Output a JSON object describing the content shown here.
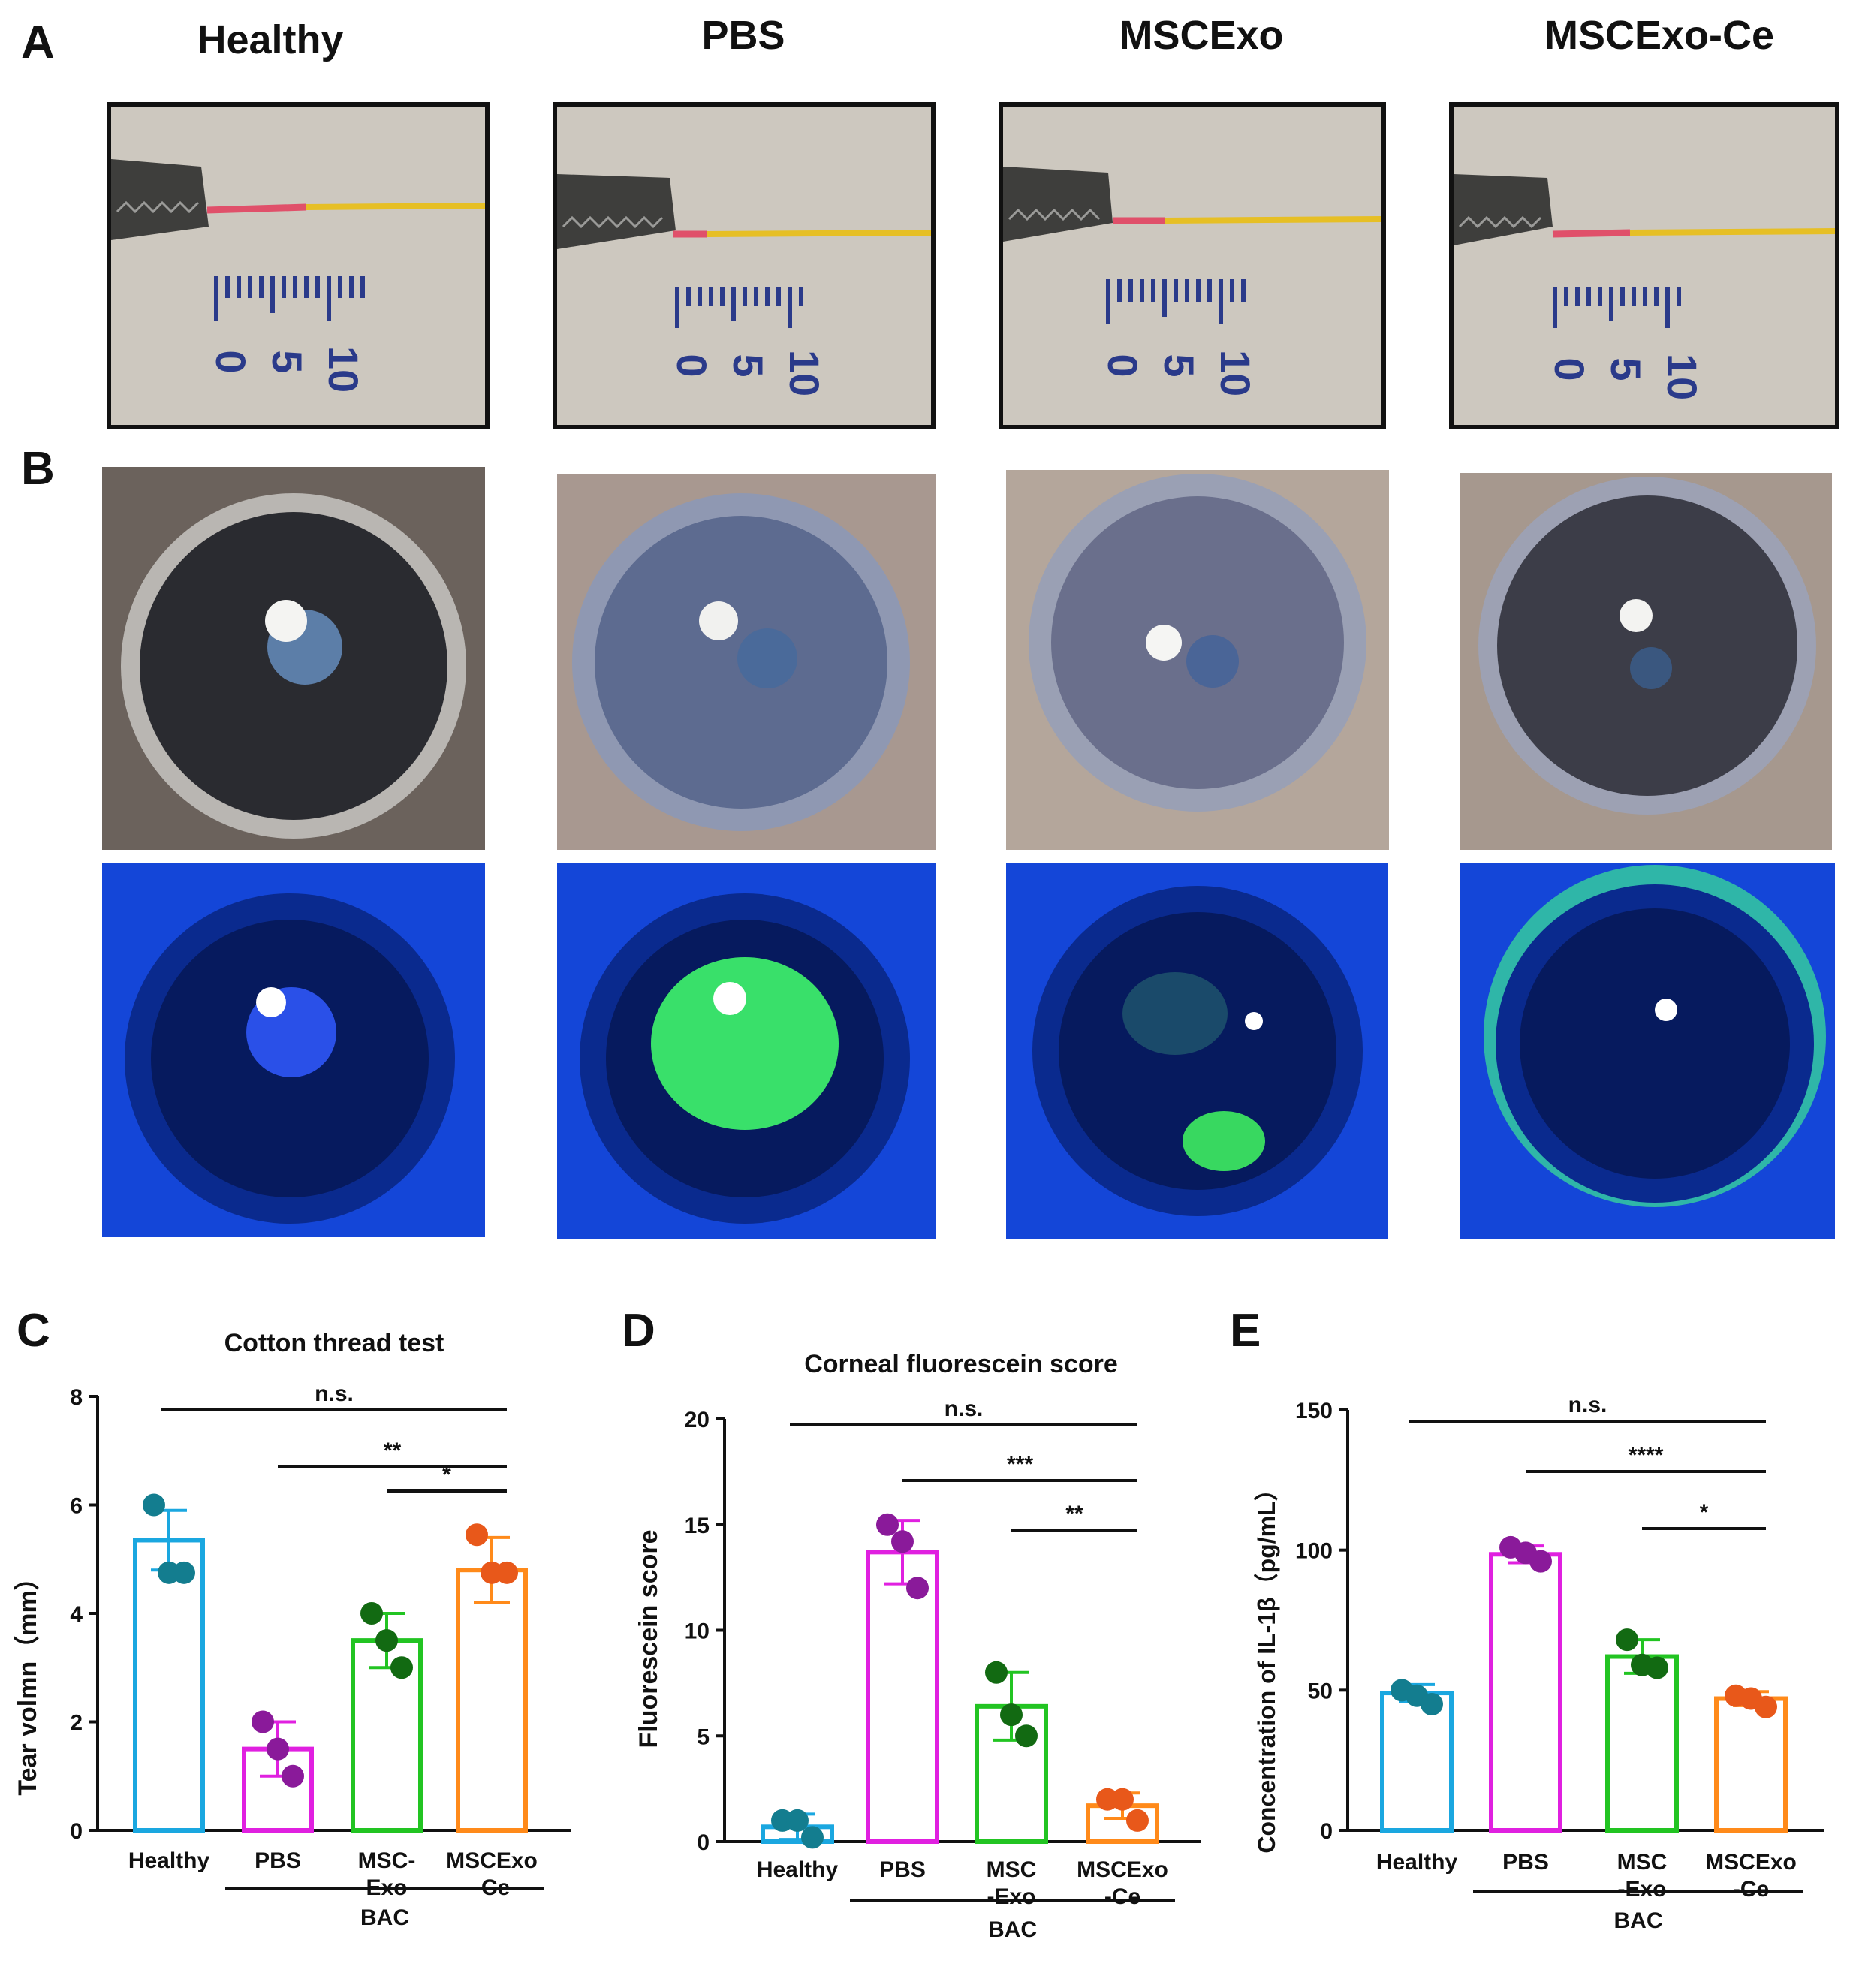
{
  "panel_labels": [
    "A",
    "B",
    "C",
    "D",
    "E"
  ],
  "groups": [
    "Healthy",
    "PBS",
    "MSCExo",
    "MSCExo-Ce"
  ],
  "ruler_ticks": [
    "0",
    "5",
    "10"
  ],
  "colors": {
    "healthy": "#1aa7e0",
    "pbs": "#e020e0",
    "mscexo": "#22c422",
    "mscexoce": "#ff8a1a",
    "dot_healthy": "#137d8f",
    "dot_pbs": "#8a1a9a",
    "dot_mscexo": "#126a12",
    "dot_mscexoce": "#e8581a"
  },
  "chart_data": [
    {
      "type": "bar",
      "title": "Cotton thread test",
      "ylabel": "Tear volmn（mm）",
      "ylim": [
        0,
        8
      ],
      "yticks": [
        "0",
        "2",
        "4",
        "6",
        "8"
      ],
      "categories": [
        "Healthy",
        "PBS",
        "MSC-|Exo",
        "MSCExo|-Ce"
      ],
      "group_label": "BAC",
      "values": [
        5.35,
        1.5,
        3.5,
        4.8
      ],
      "errors": [
        0.55,
        0.5,
        0.5,
        0.6
      ],
      "points": [
        [
          6.0,
          4.75,
          4.75
        ],
        [
          2.0,
          1.5,
          1.0
        ],
        [
          4.0,
          3.5,
          3.0
        ],
        [
          5.45,
          4.75,
          4.75
        ]
      ],
      "significance": [
        {
          "from": 0,
          "to": 3,
          "label": "n.s."
        },
        {
          "from": 1,
          "to": 3,
          "label": "**"
        },
        {
          "from": 2,
          "to": 3,
          "label": "*"
        }
      ]
    },
    {
      "type": "bar",
      "title": "Corneal fluorescein score",
      "ylabel": "Fluorescein score",
      "ylim": [
        0,
        20
      ],
      "yticks": [
        "0",
        "5",
        "10",
        "15",
        "20"
      ],
      "categories": [
        "Healthy",
        "PBS",
        "MSC|-Exo",
        "MSCExo|-Ce"
      ],
      "group_label": "BAC",
      "values": [
        0.7,
        13.7,
        6.4,
        1.7
      ],
      "errors": [
        0.6,
        1.5,
        1.6,
        0.6
      ],
      "points": [
        [
          1.0,
          1.0,
          0.2
        ],
        [
          15.0,
          14.2,
          12.0
        ],
        [
          8.0,
          6.0,
          5.0
        ],
        [
          2.0,
          2.0,
          1.0
        ]
      ],
      "significance": [
        {
          "from": 0,
          "to": 3,
          "label": "n.s."
        },
        {
          "from": 1,
          "to": 3,
          "label": "***"
        },
        {
          "from": 2,
          "to": 3,
          "label": "**"
        }
      ]
    },
    {
      "type": "bar",
      "title": "",
      "ylabel": "Concentration of IL-1β（pg/mL）",
      "ylim": [
        0,
        150
      ],
      "yticks": [
        "0",
        "50",
        "100",
        "150"
      ],
      "categories": [
        "Healthy",
        "PBS",
        "MSC|-Exo",
        "MSCExo|-Ce"
      ],
      "group_label": "BAC",
      "values": [
        49,
        98.5,
        62,
        47
      ],
      "errors": [
        3,
        3,
        6,
        2.5
      ],
      "points": [
        [
          50,
          48,
          45
        ],
        [
          101,
          99,
          96
        ],
        [
          68,
          59,
          58
        ],
        [
          48,
          47,
          44
        ]
      ],
      "significance": [
        {
          "from": 0,
          "to": 3,
          "label": "n.s."
        },
        {
          "from": 1,
          "to": 3,
          "label": "****"
        },
        {
          "from": 2,
          "to": 3,
          "label": "*"
        }
      ]
    }
  ]
}
